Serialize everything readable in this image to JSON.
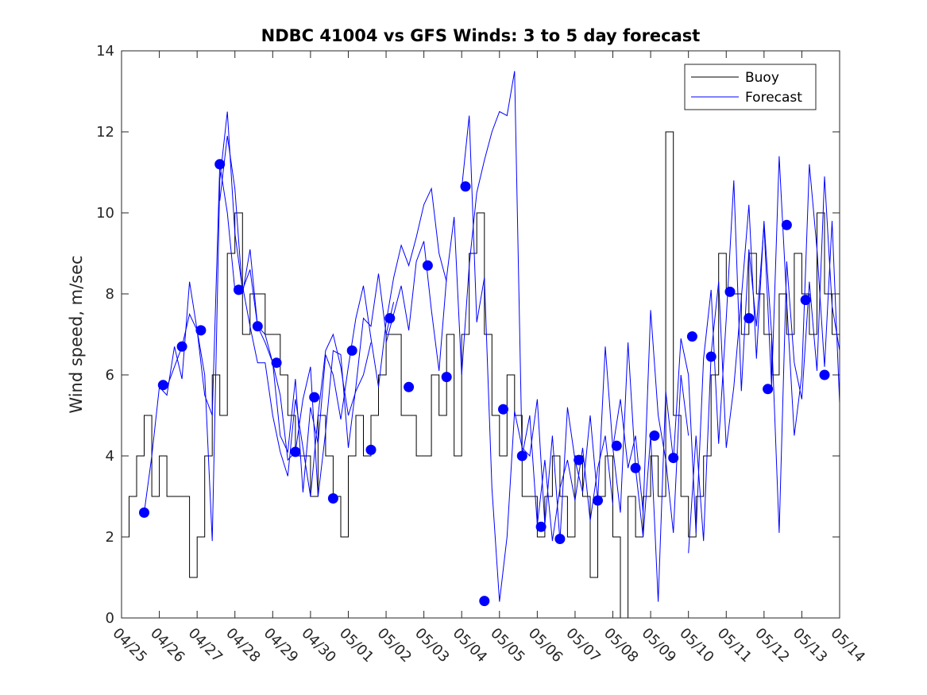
{
  "chart_data": {
    "type": "line",
    "title": "NDBC 41004 vs GFS Winds: 3 to 5 day forecast",
    "xlabel": "",
    "ylabel": "Wind speed, m/sec",
    "ylim": [
      0,
      14
    ],
    "yticks": [
      0,
      2,
      4,
      6,
      8,
      10,
      12,
      14
    ],
    "xlim": [
      0,
      19
    ],
    "xticks": [
      0,
      1,
      2,
      3,
      4,
      5,
      6,
      7,
      8,
      9,
      10,
      11,
      12,
      13,
      14,
      15,
      16,
      17,
      18,
      19
    ],
    "xtick_labels": [
      "04/25",
      "04/26",
      "04/27",
      "04/28",
      "04/29",
      "04/30",
      "05/01",
      "05/02",
      "05/03",
      "05/04",
      "05/05",
      "05/06",
      "05/07",
      "05/08",
      "05/09",
      "05/10",
      "05/11",
      "05/12",
      "05/13",
      "05/14"
    ],
    "grid": false,
    "legend": {
      "position": "top-right",
      "entries": [
        "Buoy",
        "Forecast"
      ]
    },
    "colors": {
      "buoy": "#000000",
      "forecast": "#0000ff",
      "markers": "#0000ff"
    },
    "buoy": {
      "name": "Buoy",
      "x": [
        0.0,
        0.2,
        0.4,
        0.6,
        0.8,
        1.0,
        1.2,
        1.4,
        1.6,
        1.8,
        2.0,
        2.2,
        2.4,
        2.6,
        2.8,
        3.0,
        3.2,
        3.4,
        3.6,
        3.8,
        4.0,
        4.2,
        4.4,
        4.6,
        4.8,
        5.0,
        5.2,
        5.4,
        5.6,
        5.8,
        6.0,
        6.2,
        6.4,
        6.6,
        6.8,
        7.0,
        7.2,
        7.4,
        7.6,
        7.8,
        8.0,
        8.2,
        8.4,
        8.6,
        8.8,
        9.0,
        9.2,
        9.4,
        9.6,
        9.8,
        10.0,
        10.2,
        10.4,
        10.6,
        10.8,
        11.0,
        11.2,
        11.4,
        11.6,
        11.8,
        12.0,
        12.2,
        12.4,
        12.6,
        12.8,
        13.0,
        13.2,
        13.4,
        13.6,
        13.8,
        14.0,
        14.2,
        14.4,
        14.6,
        14.8,
        15.0,
        15.2,
        15.4,
        15.6,
        15.8,
        16.0,
        16.2,
        16.4,
        16.6,
        16.8,
        17.0,
        17.2,
        17.4,
        17.6,
        17.8,
        18.0,
        18.2,
        18.4,
        18.6,
        18.8,
        19.0
      ],
      "values": [
        2,
        3,
        4,
        5,
        3,
        4,
        3,
        3,
        3,
        1,
        2,
        4,
        6,
        5,
        9,
        10,
        7,
        8,
        8,
        7,
        7,
        6,
        5,
        4,
        4,
        3,
        5,
        4,
        3,
        2,
        4,
        5,
        4,
        5,
        6,
        7,
        7,
        5,
        5,
        4,
        4,
        6,
        5,
        7,
        4,
        7,
        9,
        10,
        7,
        5,
        4,
        6,
        5,
        3,
        3,
        2,
        3,
        4,
        3,
        2,
        4,
        3,
        1,
        3,
        4,
        2,
        0,
        3,
        2,
        3,
        4,
        3,
        12,
        5,
        3,
        2,
        3,
        4,
        6,
        9,
        8,
        8,
        7,
        9,
        8,
        7,
        6,
        8,
        7,
        9,
        8,
        7,
        10,
        8,
        7,
        6
      ]
    },
    "forecast": {
      "name": "Forecast",
      "runs": [
        {
          "x": [
            0.6,
            0.8,
            1.0,
            1.2,
            1.4,
            1.6,
            1.8,
            2.0,
            2.2,
            2.4,
            2.6,
            2.8,
            3.0,
            3.2,
            3.4,
            3.6,
            3.8,
            4.0,
            4.2,
            4.4,
            4.6,
            4.8,
            5.0,
            5.2,
            5.4,
            5.6,
            5.8,
            6.0,
            6.2,
            6.4,
            6.6
          ],
          "values": [
            2.6,
            4.0,
            5.7,
            5.5,
            6.7,
            5.9,
            8.3,
            7.1,
            5.5,
            5.0,
            11.2,
            10.0,
            8.1,
            8.2,
            7.2,
            6.3,
            6.3,
            5.0,
            4.1,
            3.5,
            5.4,
            4.2,
            3.0,
            5.0,
            6.6,
            7.0,
            6.2,
            5.0,
            5.6,
            6.0,
            6.8
          ]
        },
        {
          "x": [
            1.2,
            1.4,
            1.6,
            1.8,
            2.0,
            2.2,
            2.4,
            2.6,
            2.8,
            3.0,
            3.2,
            3.4,
            3.6,
            3.8,
            4.0,
            4.2,
            4.4,
            4.6,
            4.8,
            5.0,
            5.2,
            5.4,
            5.6,
            5.8,
            6.0,
            6.2,
            6.4,
            6.6,
            6.8,
            7.0,
            7.2
          ],
          "values": [
            5.7,
            6.2,
            6.7,
            7.5,
            7.1,
            6.0,
            1.9,
            10.8,
            12.5,
            9.5,
            8.1,
            8.6,
            7.2,
            7.0,
            6.3,
            5.5,
            3.9,
            4.1,
            5.4,
            6.2,
            3.0,
            4.6,
            6.6,
            6.5,
            4.2,
            5.7,
            7.4,
            7.2,
            8.5,
            7.0,
            7.8
          ]
        },
        {
          "x": [
            2.6,
            2.8,
            3.0,
            3.2,
            3.4,
            3.6,
            3.8,
            4.0,
            4.2,
            4.4,
            4.6,
            4.8,
            5.0,
            5.2,
            5.4,
            5.6,
            5.8,
            6.0,
            6.2,
            6.4,
            6.6,
            6.8,
            7.0,
            7.2,
            7.4,
            7.6,
            7.8,
            8.0,
            8.2,
            8.4,
            8.6
          ],
          "values": [
            10.3,
            11.9,
            10.6,
            8.0,
            9.1,
            7.2,
            6.8,
            6.3,
            4.5,
            4.1,
            5.9,
            3.1,
            5.2,
            4.3,
            6.5,
            6.0,
            4.9,
            6.2,
            7.4,
            8.2,
            6.9,
            5.7,
            7.3,
            8.4,
            9.2,
            8.7,
            9.4,
            10.2,
            10.6,
            9.0,
            8.3
          ]
        },
        {
          "x": [
            7.0,
            7.2,
            7.4,
            7.6,
            7.8,
            8.0,
            8.2,
            8.4,
            8.6,
            8.8,
            9.0,
            9.2,
            9.4,
            9.6,
            9.8,
            10.0,
            10.2,
            10.4,
            10.6,
            10.8,
            11.0,
            11.2,
            11.4,
            11.6,
            11.8,
            12.0,
            12.2,
            12.4,
            12.6,
            12.8,
            13.0
          ],
          "values": [
            6.8,
            7.5,
            8.2,
            7.1,
            8.8,
            9.3,
            7.6,
            6.1,
            8.4,
            9.9,
            6.0,
            8.7,
            10.5,
            11.3,
            12.0,
            12.5,
            12.4,
            13.5,
            4.0,
            5.0,
            2.3,
            3.9,
            1.9,
            3.2,
            3.9,
            2.9,
            4.2,
            2.4,
            3.7,
            4.5,
            2.8
          ]
        },
        {
          "x": [
            9.0,
            9.2,
            9.4,
            9.6,
            9.8,
            10.0,
            10.2,
            10.4,
            10.6,
            10.8,
            11.0,
            11.2,
            11.4,
            11.6,
            11.8,
            12.0,
            12.2,
            12.4,
            12.6,
            12.8,
            13.0,
            13.2,
            13.4,
            13.6,
            13.8,
            14.0,
            14.2,
            14.4,
            14.6,
            14.8,
            15.0
          ],
          "values": [
            10.6,
            12.4,
            7.3,
            8.4,
            3.2,
            0.4,
            2.0,
            5.1,
            4.2,
            4.0,
            5.4,
            2.3,
            4.5,
            1.9,
            5.2,
            3.9,
            3.1,
            5.0,
            2.9,
            6.7,
            4.2,
            5.4,
            3.7,
            4.5,
            2.6,
            7.6,
            5.0,
            3.9,
            2.1,
            6.0,
            4.5
          ]
        },
        {
          "x": [
            13.0,
            13.2,
            13.4,
            13.6,
            13.8,
            14.0,
            14.2,
            14.4,
            14.6,
            14.8,
            15.0,
            15.2,
            15.4,
            15.6,
            15.8,
            16.0,
            16.2,
            16.4,
            16.6,
            16.8,
            17.0,
            17.2,
            17.4,
            17.6,
            17.8,
            18.0,
            18.2,
            18.4,
            18.6,
            18.8,
            19.0
          ],
          "values": [
            4.2,
            2.6,
            6.8,
            3.7,
            2.0,
            4.5,
            0.4,
            5.6,
            3.9,
            6.9,
            6.0,
            2.1,
            6.4,
            8.1,
            4.3,
            7.4,
            10.8,
            5.6,
            9.1,
            7.2,
            9.7,
            5.7,
            11.4,
            7.8,
            4.5,
            6.0,
            11.2,
            9.1,
            6.2,
            9.8,
            5.3
          ]
        },
        {
          "x": [
            15.0,
            15.2,
            15.4,
            15.6,
            15.8,
            16.0,
            16.2,
            16.4,
            16.6,
            16.8,
            17.0,
            17.2,
            17.4,
            17.6,
            17.8,
            18.0,
            18.2,
            18.4,
            18.6,
            18.8,
            19.0
          ],
          "values": [
            1.6,
            4.5,
            1.9,
            6.5,
            8.3,
            4.2,
            5.7,
            7.9,
            10.2,
            6.4,
            9.8,
            7.0,
            2.1,
            8.8,
            6.3,
            5.4,
            8.3,
            6.1,
            10.9,
            7.7,
            6.6
          ]
        }
      ]
    },
    "markers": {
      "x": [
        0.6,
        1.1,
        1.6,
        2.1,
        2.6,
        3.1,
        3.6,
        4.1,
        4.6,
        5.1,
        5.6,
        6.1,
        6.6,
        7.1,
        7.6,
        8.1,
        8.6,
        9.1,
        9.6,
        10.1,
        10.6,
        11.1,
        11.6,
        12.1,
        12.6,
        13.1,
        13.6,
        14.1,
        14.6,
        15.1,
        15.6,
        16.1,
        16.6,
        17.1,
        17.6,
        18.1,
        18.6
      ],
      "values": [
        2.6,
        5.75,
        6.7,
        7.1,
        11.2,
        8.1,
        7.2,
        6.3,
        4.1,
        5.45,
        2.95,
        6.6,
        4.15,
        7.4,
        5.7,
        8.7,
        5.95,
        10.65,
        0.42,
        5.15,
        4.0,
        2.25,
        1.95,
        3.9,
        2.9,
        4.25,
        3.7,
        4.5,
        3.95,
        6.95,
        6.45,
        8.05,
        7.4,
        5.65,
        9.7,
        7.85,
        6.0
      ]
    }
  }
}
